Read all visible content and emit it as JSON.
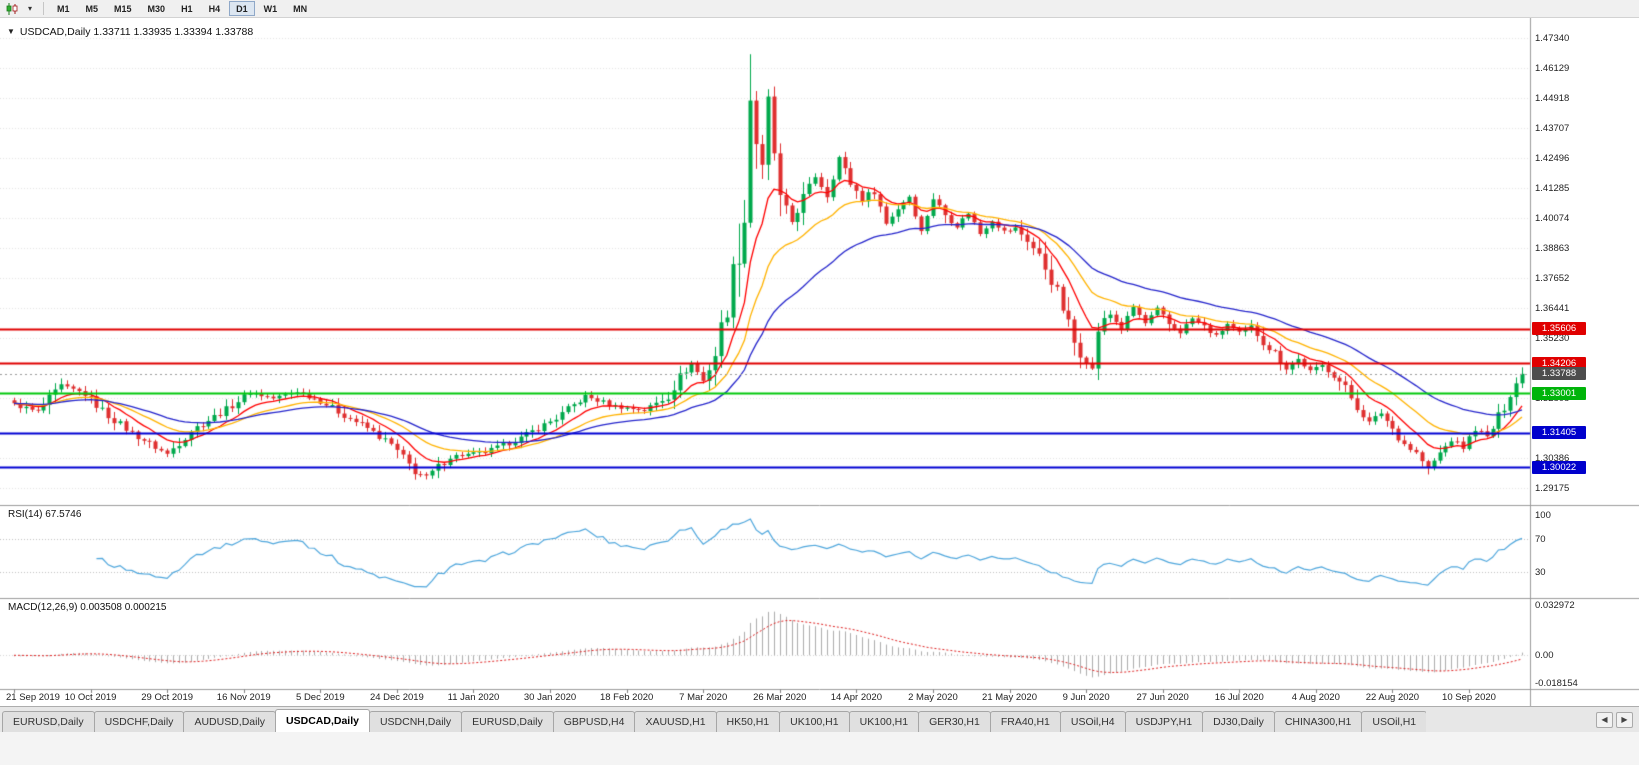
{
  "icons": {
    "chart_dropdown": "▼",
    "toolbar_caret": "▾",
    "tab_scroll_left": "◀",
    "tab_scroll_right": "▶"
  },
  "toolbar": {
    "timeframes": [
      "M1",
      "M5",
      "M15",
      "M30",
      "H1",
      "H4",
      "D1",
      "W1",
      "MN"
    ],
    "active_timeframe": "D1"
  },
  "chart": {
    "symbol": "USDCAD",
    "period": "Daily",
    "open": "1.33711",
    "high": "1.33935",
    "low": "1.33394",
    "close": "1.33788",
    "title_line": "USDCAD,Daily 1.33711 1.33935 1.33394 1.33788"
  },
  "price_axis": {
    "ticks": [
      "1.47340",
      "1.46129",
      "1.44918",
      "1.43707",
      "1.42496",
      "1.41285",
      "1.40074",
      "1.38863",
      "1.37652",
      "1.36441",
      "1.35230",
      "1.32808",
      "1.30386",
      "1.29175"
    ],
    "badges": [
      {
        "text": "1.35606",
        "price": 1.35606,
        "color": "#E00000"
      },
      {
        "text": "1.34206",
        "price": 1.34206,
        "color": "#E00000"
      },
      {
        "text": "1.33788",
        "price": 1.33788,
        "color": "#4D4D4D"
      },
      {
        "text": "1.33001",
        "price": 1.33001,
        "color": "#00B40A"
      },
      {
        "text": "1.31405",
        "price": 1.31405,
        "color": "#0000CC"
      },
      {
        "text": "1.30022",
        "price": 1.30022,
        "color": "#0000CC"
      }
    ]
  },
  "rsi": {
    "label_line": "RSI(14) 67.5746",
    "period": 14,
    "value": "67.5746",
    "color": "#4FA7DD",
    "guides": [
      70,
      30
    ],
    "axis_ticks": [
      {
        "text": "100",
        "value": 100
      },
      {
        "text": "70",
        "value": 70
      },
      {
        "text": "30",
        "value": 30
      }
    ]
  },
  "macd": {
    "label_line": "MACD(12,26,9) 0.003508 0.000215",
    "fast": 12,
    "slow": 26,
    "signal": 9,
    "main_value": "0.003508",
    "signal_value": "0.000215",
    "scale_max": 0.032972,
    "scale_min": -0.018154,
    "histogram_color": "#ADADAD",
    "signal_color": "#E02020",
    "axis_ticks": [
      {
        "text": "0.032972",
        "value": 0.032972
      },
      {
        "text": "0.00",
        "value": 0
      },
      {
        "text": "-0.018154",
        "value": -0.018154
      }
    ]
  },
  "date_axis": {
    "labels": [
      "21 Sep 2019",
      "10 Oct 2019",
      "29 Oct 2019",
      "16 Nov 2019",
      "5 Dec 2019",
      "24 Dec 2019",
      "11 Jan 2020",
      "30 Jan 2020",
      "18 Feb 2020",
      "7 Mar 2020",
      "26 Mar 2020",
      "14 Apr 2020",
      "2 May 2020",
      "21 May 2020",
      "9 Jun 2020",
      "27 Jun 2020",
      "16 Jul 2020",
      "4 Aug 2020",
      "22 Aug 2020",
      "10 Sep 2020"
    ],
    "label_indices": [
      0,
      13,
      26,
      39,
      52,
      65,
      78,
      91,
      104,
      117,
      130,
      143,
      156,
      169,
      182,
      195,
      208,
      221,
      234,
      247
    ]
  },
  "tabs": {
    "items": [
      "EURUSD,Daily",
      "USDCHF,Daily",
      "AUDUSD,Daily",
      "USDCAD,Daily",
      "USDCNH,Daily",
      "EURUSD,Daily",
      "GBPUSD,H4",
      "XAUUSD,H1",
      "HK50,H1",
      "UK100,H1",
      "UK100,H1",
      "GER30,H1",
      "FRA40,H1",
      "USOil,H4",
      "USDJPY,H1",
      "DJ30,Daily",
      "CHINA300,H1",
      "USOil,H1"
    ],
    "active_index": 3
  },
  "chart_data": {
    "type": "candlestick",
    "symbol": "USDCAD",
    "timeframe": "Daily",
    "x_start_date": "21 Sep 2019",
    "x_end_date": "22 Sep 2020",
    "candle_count": 257,
    "ylim": [
      1.287,
      1.479
    ],
    "bull_color": "#00A94C",
    "bear_color": "#DF3030",
    "grid_color": "#E4E4E4",
    "current_price": 1.33788,
    "price_path_anchors": [
      [
        0,
        1.3255
      ],
      [
        4,
        1.3225
      ],
      [
        8,
        1.333
      ],
      [
        12,
        1.3298
      ],
      [
        16,
        1.321
      ],
      [
        20,
        1.314
      ],
      [
        26,
        1.3055
      ],
      [
        30,
        1.315
      ],
      [
        36,
        1.3235
      ],
      [
        40,
        1.3305
      ],
      [
        44,
        1.328
      ],
      [
        48,
        1.3308
      ],
      [
        52,
        1.327
      ],
      [
        56,
        1.3212
      ],
      [
        60,
        1.316
      ],
      [
        64,
        1.3092
      ],
      [
        68,
        1.2985
      ],
      [
        70,
        1.2962
      ],
      [
        74,
        1.3045
      ],
      [
        80,
        1.3062
      ],
      [
        86,
        1.312
      ],
      [
        92,
        1.32
      ],
      [
        97,
        1.3288
      ],
      [
        102,
        1.3248
      ],
      [
        107,
        1.3232
      ],
      [
        111,
        1.329
      ],
      [
        113,
        1.3365
      ],
      [
        115,
        1.3422
      ],
      [
        117,
        1.335
      ],
      [
        119,
        1.346
      ],
      [
        121,
        1.3658
      ],
      [
        123,
        1.391
      ],
      [
        124,
        1.4005
      ],
      [
        125,
        1.449
      ],
      [
        126,
        1.432
      ],
      [
        127,
        1.42
      ],
      [
        128,
        1.4475
      ],
      [
        129,
        1.427
      ],
      [
        130,
        1.4062
      ],
      [
        132,
        1.3992
      ],
      [
        134,
        1.4088
      ],
      [
        136,
        1.4175
      ],
      [
        138,
        1.41
      ],
      [
        140,
        1.4252
      ],
      [
        142,
        1.415
      ],
      [
        144,
        1.4082
      ],
      [
        146,
        1.412
      ],
      [
        148,
        1.3985
      ],
      [
        150,
        1.4048
      ],
      [
        152,
        1.4098
      ],
      [
        154,
        1.3952
      ],
      [
        156,
        1.4088
      ],
      [
        158,
        1.4022
      ],
      [
        160,
        1.3975
      ],
      [
        162,
        1.403
      ],
      [
        164,
        1.3945
      ],
      [
        166,
        1.3998
      ],
      [
        168,
        1.3952
      ],
      [
        170,
        1.3965
      ],
      [
        172,
        1.392
      ],
      [
        174,
        1.3852
      ],
      [
        176,
        1.3762
      ],
      [
        178,
        1.3645
      ],
      [
        180,
        1.3505
      ],
      [
        182,
        1.3432
      ],
      [
        183,
        1.3392
      ],
      [
        184,
        1.3558
      ],
      [
        186,
        1.3618
      ],
      [
        188,
        1.3562
      ],
      [
        190,
        1.3648
      ],
      [
        192,
        1.3582
      ],
      [
        194,
        1.364
      ],
      [
        196,
        1.3578
      ],
      [
        198,
        1.3548
      ],
      [
        200,
        1.3602
      ],
      [
        202,
        1.3568
      ],
      [
        204,
        1.353
      ],
      [
        206,
        1.358
      ],
      [
        208,
        1.3542
      ],
      [
        210,
        1.3568
      ],
      [
        212,
        1.351
      ],
      [
        214,
        1.3462
      ],
      [
        216,
        1.3402
      ],
      [
        218,
        1.3438
      ],
      [
        220,
        1.3388
      ],
      [
        222,
        1.3412
      ],
      [
        224,
        1.3378
      ],
      [
        226,
        1.3318
      ],
      [
        228,
        1.3248
      ],
      [
        230,
        1.3182
      ],
      [
        232,
        1.3222
      ],
      [
        234,
        1.3158
      ],
      [
        236,
        1.3098
      ],
      [
        238,
        1.3058
      ],
      [
        240,
        1.2996
      ],
      [
        242,
        1.3058
      ],
      [
        244,
        1.3112
      ],
      [
        246,
        1.3082
      ],
      [
        248,
        1.3158
      ],
      [
        250,
        1.3122
      ],
      [
        252,
        1.3198
      ],
      [
        254,
        1.3308
      ],
      [
        256,
        1.33788
      ]
    ],
    "extremes": [
      {
        "index": 125,
        "high": 1.4668
      },
      {
        "index": 240,
        "low": 1.2973
      }
    ],
    "moving_averages": [
      {
        "name": "fast-ema",
        "period": 9,
        "color": "#FF0000"
      },
      {
        "name": "mid-ema",
        "period": 19,
        "color": "#FFB300"
      },
      {
        "name": "slow-ema",
        "period": 36,
        "color": "#2424CC"
      }
    ],
    "levels": [
      {
        "price": 1.35606,
        "color": "#E00000",
        "width": 2,
        "style": "solid"
      },
      {
        "price": 1.34206,
        "color": "#E00000",
        "width": 2,
        "style": "solid"
      },
      {
        "price": 1.33001,
        "color": "#00C80A",
        "width": 2,
        "style": "solid"
      },
      {
        "price": 1.31405,
        "color": "#0000D4",
        "width": 2,
        "style": "solid"
      },
      {
        "price": 1.30022,
        "color": "#0000D4",
        "width": 2,
        "style": "solid"
      },
      {
        "price": 1.33788,
        "color": "#9A9A9A",
        "width": 1,
        "style": "dotted"
      }
    ]
  }
}
